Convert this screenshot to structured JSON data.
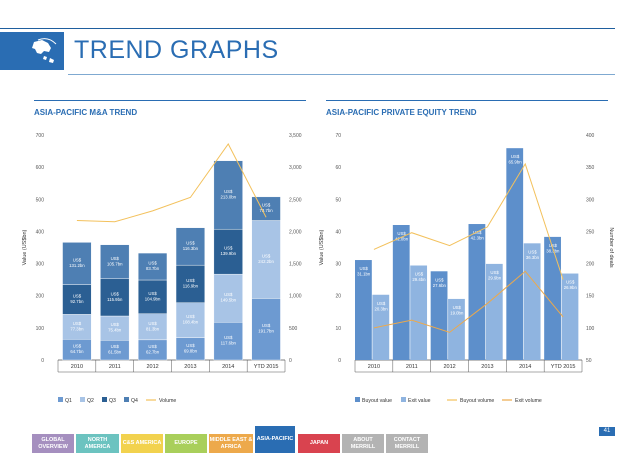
{
  "header": {
    "title": "TREND GRAPHS"
  },
  "sections": {
    "left_title": "ASIA-PACIFIC M&A TREND",
    "right_title": "ASIA-PACIFIC PRIVATE EQUITY TREND"
  },
  "page_number": "41",
  "nav": [
    {
      "label": "GLOBAL OVERVIEW",
      "color": "#a58fbf"
    },
    {
      "label": "NORTH AMERICA",
      "color": "#6cc3c0"
    },
    {
      "label": "C&S AMERICA",
      "color": "#f2d24e"
    },
    {
      "label": "EUROPE",
      "color": "#a9cf5b"
    },
    {
      "label": "MIDDLE EAST & AFRICA",
      "color": "#eda94b"
    },
    {
      "label": "ASIA-PACIFIC",
      "color": "#2a6db3"
    },
    {
      "label": "JAPAN",
      "color": "#d9434f"
    },
    {
      "label": "ABOUT MERRILL",
      "color": "#b3b3b3"
    },
    {
      "label": "CONTACT MERRILL",
      "color": "#b3b3b3"
    }
  ],
  "chart_data": [
    {
      "type": "bar",
      "title": "ASIA-PACIFIC M&A TREND",
      "ylabel": "Value (US$bn)",
      "y2label": "Number of deals",
      "categories": [
        "2010",
        "2011",
        "2012",
        "2013",
        "2014",
        "YTD 2015"
      ],
      "ylim": [
        0,
        700
      ],
      "y2lim": [
        0,
        3500
      ],
      "yticks": [
        "0",
        "100",
        "200",
        "300",
        "400",
        "500",
        "600",
        "700"
      ],
      "y2ticks": [
        "0",
        "500",
        "1,000",
        "1,500",
        "2,000",
        "2,500",
        "3,000",
        "3,500"
      ],
      "colors": {
        "Q1": "#6d9ad1",
        "Q2": "#a8c4e6",
        "Q3": "#2b5f93",
        "Q4": "#4e7fb3",
        "Volume": "#f3c15c"
      },
      "series": [
        {
          "name": "Q1",
          "values": [
            64.7,
            61.5,
            62.7,
            69.8,
            117.6,
            191.7
          ],
          "labels": [
            "US$ 64.7bn",
            "US$ 61.5bn",
            "US$ 62.7bn",
            "US$ 69.8bn",
            "US$ 117.6bn",
            "US$ 191.7bn"
          ]
        },
        {
          "name": "Q2",
          "values": [
            77.3,
            75.4,
            81.3,
            108.4,
            149.5,
            242.2
          ],
          "labels": [
            "US$ 77.3bn",
            "US$ 75.4bn",
            "US$ 81.3bn",
            "US$ 108.4bn",
            "US$ 149.5bn",
            "US$ 242.2bn"
          ]
        },
        {
          "name": "Q3",
          "values": [
            92.7,
            115.9,
            104.9,
            116.9,
            139.9,
            null
          ],
          "labels": [
            "US$ 92.7bn",
            "US$ 115.9bn",
            "US$ 104.9bn",
            "US$ 116.9bn",
            "US$ 139.9bn",
            ""
          ]
        },
        {
          "name": "Q4",
          "values": [
            131.2,
            105.7,
            83.7,
            116.3,
            213.0,
            73.7
          ],
          "labels": [
            "US$ 131.2bn",
            "US$ 105.7bn",
            "US$ 83.7bn",
            "US$ 116.3bn",
            "US$ 213.0bn",
            "US$ 73.7bn"
          ]
        },
        {
          "name": "Volume",
          "type": "line",
          "axis": "y2",
          "values": [
            2170,
            2150,
            2320,
            2530,
            3360,
            2220
          ]
        }
      ],
      "legend": "bottom"
    },
    {
      "type": "bar",
      "title": "ASIA-PACIFIC PRIVATE EQUITY TREND",
      "ylabel": "Value (US$bn)",
      "y2label": "Number of deals",
      "categories": [
        "2010",
        "2011",
        "2012",
        "2013",
        "2014",
        "YTD 2015"
      ],
      "ylim": [
        0,
        70
      ],
      "y2lim": [
        50,
        400
      ],
      "yticks": [
        "0",
        "10",
        "20",
        "30",
        "40",
        "50",
        "60",
        "70"
      ],
      "y2ticks": [
        "50",
        "100",
        "150",
        "200",
        "250",
        "300",
        "350",
        "400"
      ],
      "colors": {
        "Buyout value": "#5d8fcb",
        "Exit value": "#8fb4e0",
        "Buyout volume": "#f3c15c",
        "Exit volume": "#eda94b"
      },
      "series": [
        {
          "name": "Buyout value",
          "values": [
            31.1,
            42.0,
            27.6,
            42.3,
            65.9,
            38.3
          ],
          "labels": [
            "US$ 31.1bn",
            "US$ 42.0bn",
            "US$ 27.6bn",
            "US$ 42.3bn",
            "US$ 65.9bn",
            "US$ 38.3bn"
          ]
        },
        {
          "name": "Exit value",
          "values": [
            20.3,
            29.4,
            19.0,
            29.9,
            36.3,
            26.9
          ],
          "labels": [
            "US$ 20.3bn",
            "US$ 29.4bn",
            "US$ 19.0bn",
            "US$ 29.9bn",
            "US$ 36.3bn",
            "US$ 26.9bn"
          ]
        },
        {
          "name": "Buyout volume",
          "type": "line",
          "axis": "y2",
          "values": [
            222,
            248,
            228,
            257,
            355,
            175
          ]
        },
        {
          "name": "Exit volume",
          "type": "line",
          "axis": "y2",
          "values": [
            100,
            112,
            93,
            138,
            188,
            117
          ]
        }
      ],
      "legend": "bottom"
    }
  ]
}
